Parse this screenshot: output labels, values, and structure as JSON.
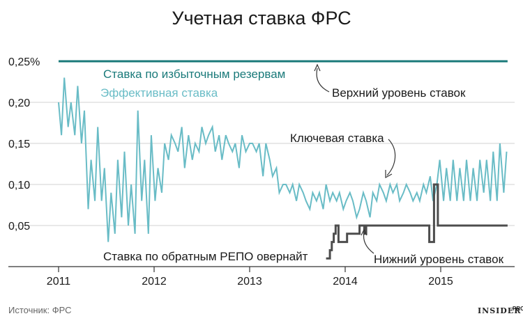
{
  "chart_data": {
    "type": "line",
    "title": "Учетная ставка ФРС",
    "xlabel": "",
    "ylabel": "",
    "x_ticks": [
      "2011",
      "2012",
      "2013",
      "2014",
      "2015"
    ],
    "y_ticks": [
      "0,25%",
      "0,20",
      "0,15",
      "0,10",
      "0,05"
    ],
    "ylim": [
      0,
      0.25
    ],
    "xlim": [
      2011.0,
      2015.8
    ],
    "grid": "horizontal",
    "source": "Источник: ФРС",
    "brand": "INSIDER",
    "brand_suffix": "PRO",
    "series": [
      {
        "name": "Ставка по избыточным резервам",
        "color": "#1a7a7a",
        "x": [
          2011.0,
          2015.7
        ],
        "values": [
          0.25,
          0.25
        ]
      },
      {
        "name": "Эффективная ставка",
        "color": "#69bcc6",
        "x": [
          2011.0,
          2011.03,
          2011.06,
          2011.1,
          2011.13,
          2011.17,
          2011.2,
          2011.24,
          2011.27,
          2011.31,
          2011.34,
          2011.38,
          2011.41,
          2011.45,
          2011.48,
          2011.52,
          2011.55,
          2011.59,
          2011.62,
          2011.66,
          2011.69,
          2011.73,
          2011.76,
          2011.8,
          2011.83,
          2011.87,
          2011.9,
          2011.94,
          2011.97,
          2012.01,
          2012.04,
          2012.08,
          2012.11,
          2012.15,
          2012.18,
          2012.22,
          2012.25,
          2012.29,
          2012.32,
          2012.36,
          2012.4,
          2012.43,
          2012.47,
          2012.5,
          2012.54,
          2012.57,
          2012.61,
          2012.64,
          2012.68,
          2012.71,
          2012.75,
          2012.78,
          2012.82,
          2012.85,
          2012.89,
          2012.92,
          2012.96,
          2013.0,
          2013.03,
          2013.07,
          2013.1,
          2013.14,
          2013.17,
          2013.21,
          2013.24,
          2013.28,
          2013.31,
          2013.35,
          2013.38,
          2013.42,
          2013.45,
          2013.49,
          2013.52,
          2013.56,
          2013.59,
          2013.63,
          2013.66,
          2013.7,
          2013.73,
          2013.77,
          2013.8,
          2013.84,
          2013.87,
          2013.91,
          2013.94,
          2013.98,
          2014.01,
          2014.05,
          2014.08,
          2014.12,
          2014.15,
          2014.19,
          2014.22,
          2014.26,
          2014.29,
          2014.33,
          2014.36,
          2014.4,
          2014.43,
          2014.47,
          2014.5,
          2014.54,
          2014.57,
          2014.61,
          2014.64,
          2014.68,
          2014.71,
          2014.75,
          2014.78,
          2014.82,
          2014.85,
          2014.89,
          2014.92,
          2014.96,
          2014.99,
          2015.03,
          2015.06,
          2015.1,
          2015.13,
          2015.17,
          2015.2,
          2015.24,
          2015.27,
          2015.31,
          2015.34,
          2015.38,
          2015.41,
          2015.45,
          2015.48,
          2015.52,
          2015.55,
          2015.59,
          2015.62,
          2015.66,
          2015.69
        ],
        "values": [
          0.2,
          0.16,
          0.23,
          0.17,
          0.2,
          0.16,
          0.22,
          0.15,
          0.19,
          0.07,
          0.13,
          0.08,
          0.17,
          0.08,
          0.12,
          0.03,
          0.09,
          0.04,
          0.13,
          0.06,
          0.14,
          0.05,
          0.1,
          0.04,
          0.19,
          0.08,
          0.13,
          0.04,
          0.16,
          0.08,
          0.12,
          0.09,
          0.15,
          0.13,
          0.16,
          0.15,
          0.14,
          0.17,
          0.12,
          0.16,
          0.13,
          0.15,
          0.14,
          0.17,
          0.15,
          0.16,
          0.17,
          0.14,
          0.16,
          0.13,
          0.16,
          0.15,
          0.14,
          0.15,
          0.12,
          0.16,
          0.14,
          0.15,
          0.15,
          0.14,
          0.15,
          0.11,
          0.15,
          0.13,
          0.11,
          0.12,
          0.09,
          0.1,
          0.1,
          0.09,
          0.1,
          0.08,
          0.1,
          0.09,
          0.08,
          0.07,
          0.09,
          0.08,
          0.09,
          0.07,
          0.1,
          0.08,
          0.09,
          0.08,
          0.09,
          0.07,
          0.08,
          0.09,
          0.08,
          0.06,
          0.07,
          0.09,
          0.08,
          0.06,
          0.09,
          0.08,
          0.1,
          0.09,
          0.08,
          0.1,
          0.09,
          0.1,
          0.08,
          0.09,
          0.1,
          0.09,
          0.08,
          0.09,
          0.08,
          0.1,
          0.09,
          0.11,
          0.08,
          0.1,
          0.13,
          0.08,
          0.12,
          0.08,
          0.13,
          0.08,
          0.12,
          0.08,
          0.13,
          0.08,
          0.12,
          0.08,
          0.13,
          0.09,
          0.13,
          0.08,
          0.14,
          0.08,
          0.15,
          0.09,
          0.14
        ]
      },
      {
        "name": "Ставка по обратным РЕПО овернайт",
        "color": "#4d4d4d",
        "x": [
          2013.8,
          2013.84,
          2013.84,
          2013.86,
          2013.86,
          2013.88,
          2013.88,
          2013.9,
          2013.9,
          2013.93,
          2013.93,
          2014.02,
          2014.02,
          2014.15,
          2014.15,
          2014.2,
          2014.2,
          2014.22,
          2014.22,
          2014.3,
          2014.3,
          2014.88,
          2014.88,
          2014.93,
          2014.93,
          2014.97,
          2014.97,
          2015.01,
          2015.01,
          2015.7
        ],
        "values": [
          0.01,
          0.01,
          0.02,
          0.02,
          0.03,
          0.03,
          0.04,
          0.04,
          0.05,
          0.05,
          0.03,
          0.03,
          0.04,
          0.04,
          0.05,
          0.05,
          0.04,
          0.04,
          0.05,
          0.05,
          0.05,
          0.05,
          0.03,
          0.03,
          0.1,
          0.1,
          0.05,
          0.05,
          0.05,
          0.05
        ]
      }
    ],
    "annotations": [
      "Ставка по избыточным резервам",
      "Эффективная ставка",
      "Верхний уровень ставок",
      "Ключевая ставка",
      "Ставка по обратным РЕПО овернайт",
      "Нижний уровень ставок"
    ]
  }
}
